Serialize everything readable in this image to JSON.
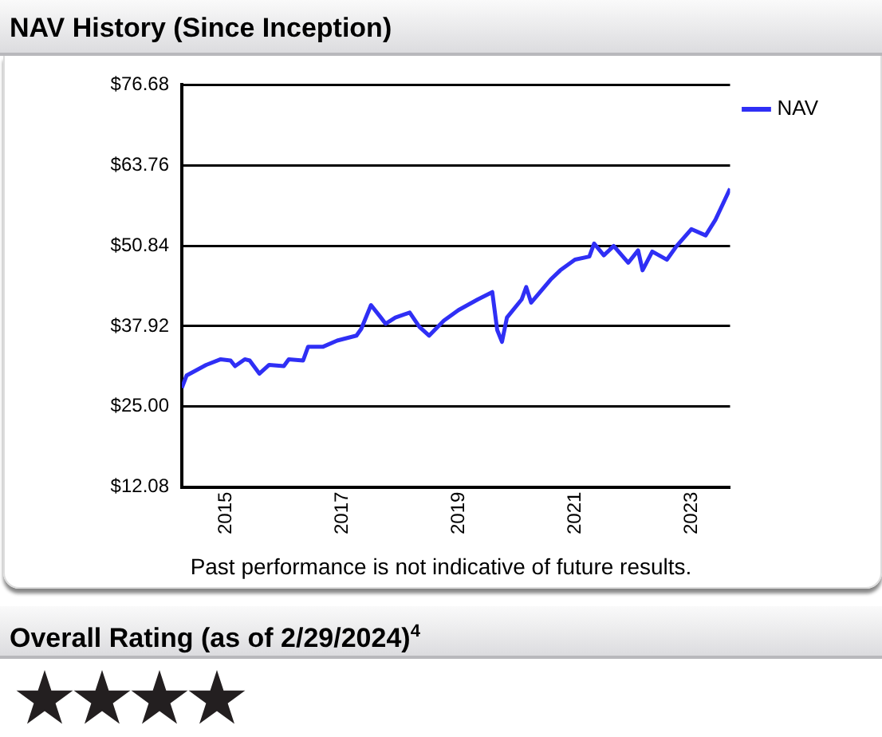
{
  "chart_data": {
    "type": "line",
    "title": "NAV History (Since Inception)",
    "x": [
      "2014-04",
      "2014-05",
      "2014-09",
      "2014-12",
      "2015-02",
      "2015-03",
      "2015-05",
      "2015-06",
      "2015-08",
      "2015-10",
      "2016-01",
      "2016-02",
      "2016-05",
      "2016-06",
      "2016-09",
      "2016-12",
      "2017-04",
      "2017-05",
      "2017-07",
      "2017-09",
      "2017-10",
      "2017-12",
      "2018-03",
      "2018-05",
      "2018-07",
      "2018-10",
      "2019-01",
      "2019-05",
      "2019-08",
      "2019-09",
      "2019-10",
      "2019-11",
      "2020-02",
      "2020-03",
      "2020-04",
      "2020-08",
      "2020-10",
      "2021-01",
      "2021-04",
      "2021-05",
      "2021-07",
      "2021-09",
      "2021-12",
      "2022-02",
      "2022-03",
      "2022-05",
      "2022-08",
      "2022-10",
      "2023-01",
      "2023-04",
      "2023-06",
      "2023-09"
    ],
    "series": [
      {
        "name": "NAV",
        "color": "#2f2ff5",
        "values": [
          28.0,
          30.0,
          31.7,
          32.6,
          32.4,
          31.5,
          32.6,
          32.4,
          30.3,
          31.7,
          31.5,
          32.6,
          32.4,
          34.6,
          34.6,
          35.6,
          36.4,
          37.5,
          41.3,
          39.3,
          38.3,
          39.3,
          40.1,
          37.8,
          36.4,
          38.8,
          40.5,
          42.2,
          43.4,
          37.3,
          35.4,
          39.3,
          42.2,
          44.2,
          41.7,
          45.4,
          46.9,
          48.6,
          49.1,
          51.2,
          49.3,
          50.8,
          48.1,
          50.1,
          46.9,
          49.9,
          48.6,
          50.8,
          53.5,
          52.5,
          55.0,
          60.0
        ]
      }
    ],
    "xlim": [
      "2014-04",
      "2023-09"
    ],
    "xticks": [
      "2015",
      "2017",
      "2019",
      "2021",
      "2023"
    ],
    "ylim": [
      12.08,
      76.68
    ],
    "yticks": [
      {
        "value": 12.08,
        "label": "$12.08"
      },
      {
        "value": 25.0,
        "label": "$25.00"
      },
      {
        "value": 37.92,
        "label": "$37.92"
      },
      {
        "value": 50.84,
        "label": "$50.84"
      },
      {
        "value": 63.76,
        "label": "$63.76"
      },
      {
        "value": 76.68,
        "label": "$76.68"
      }
    ],
    "grid": "y",
    "legend": "top right",
    "marker": "none",
    "line_style": "solid",
    "annotations": [
      "Past performance is not indicative of future results.",
      "Overall Rating (as of 2/29/2024)$^{4}$"
    ]
  }
}
